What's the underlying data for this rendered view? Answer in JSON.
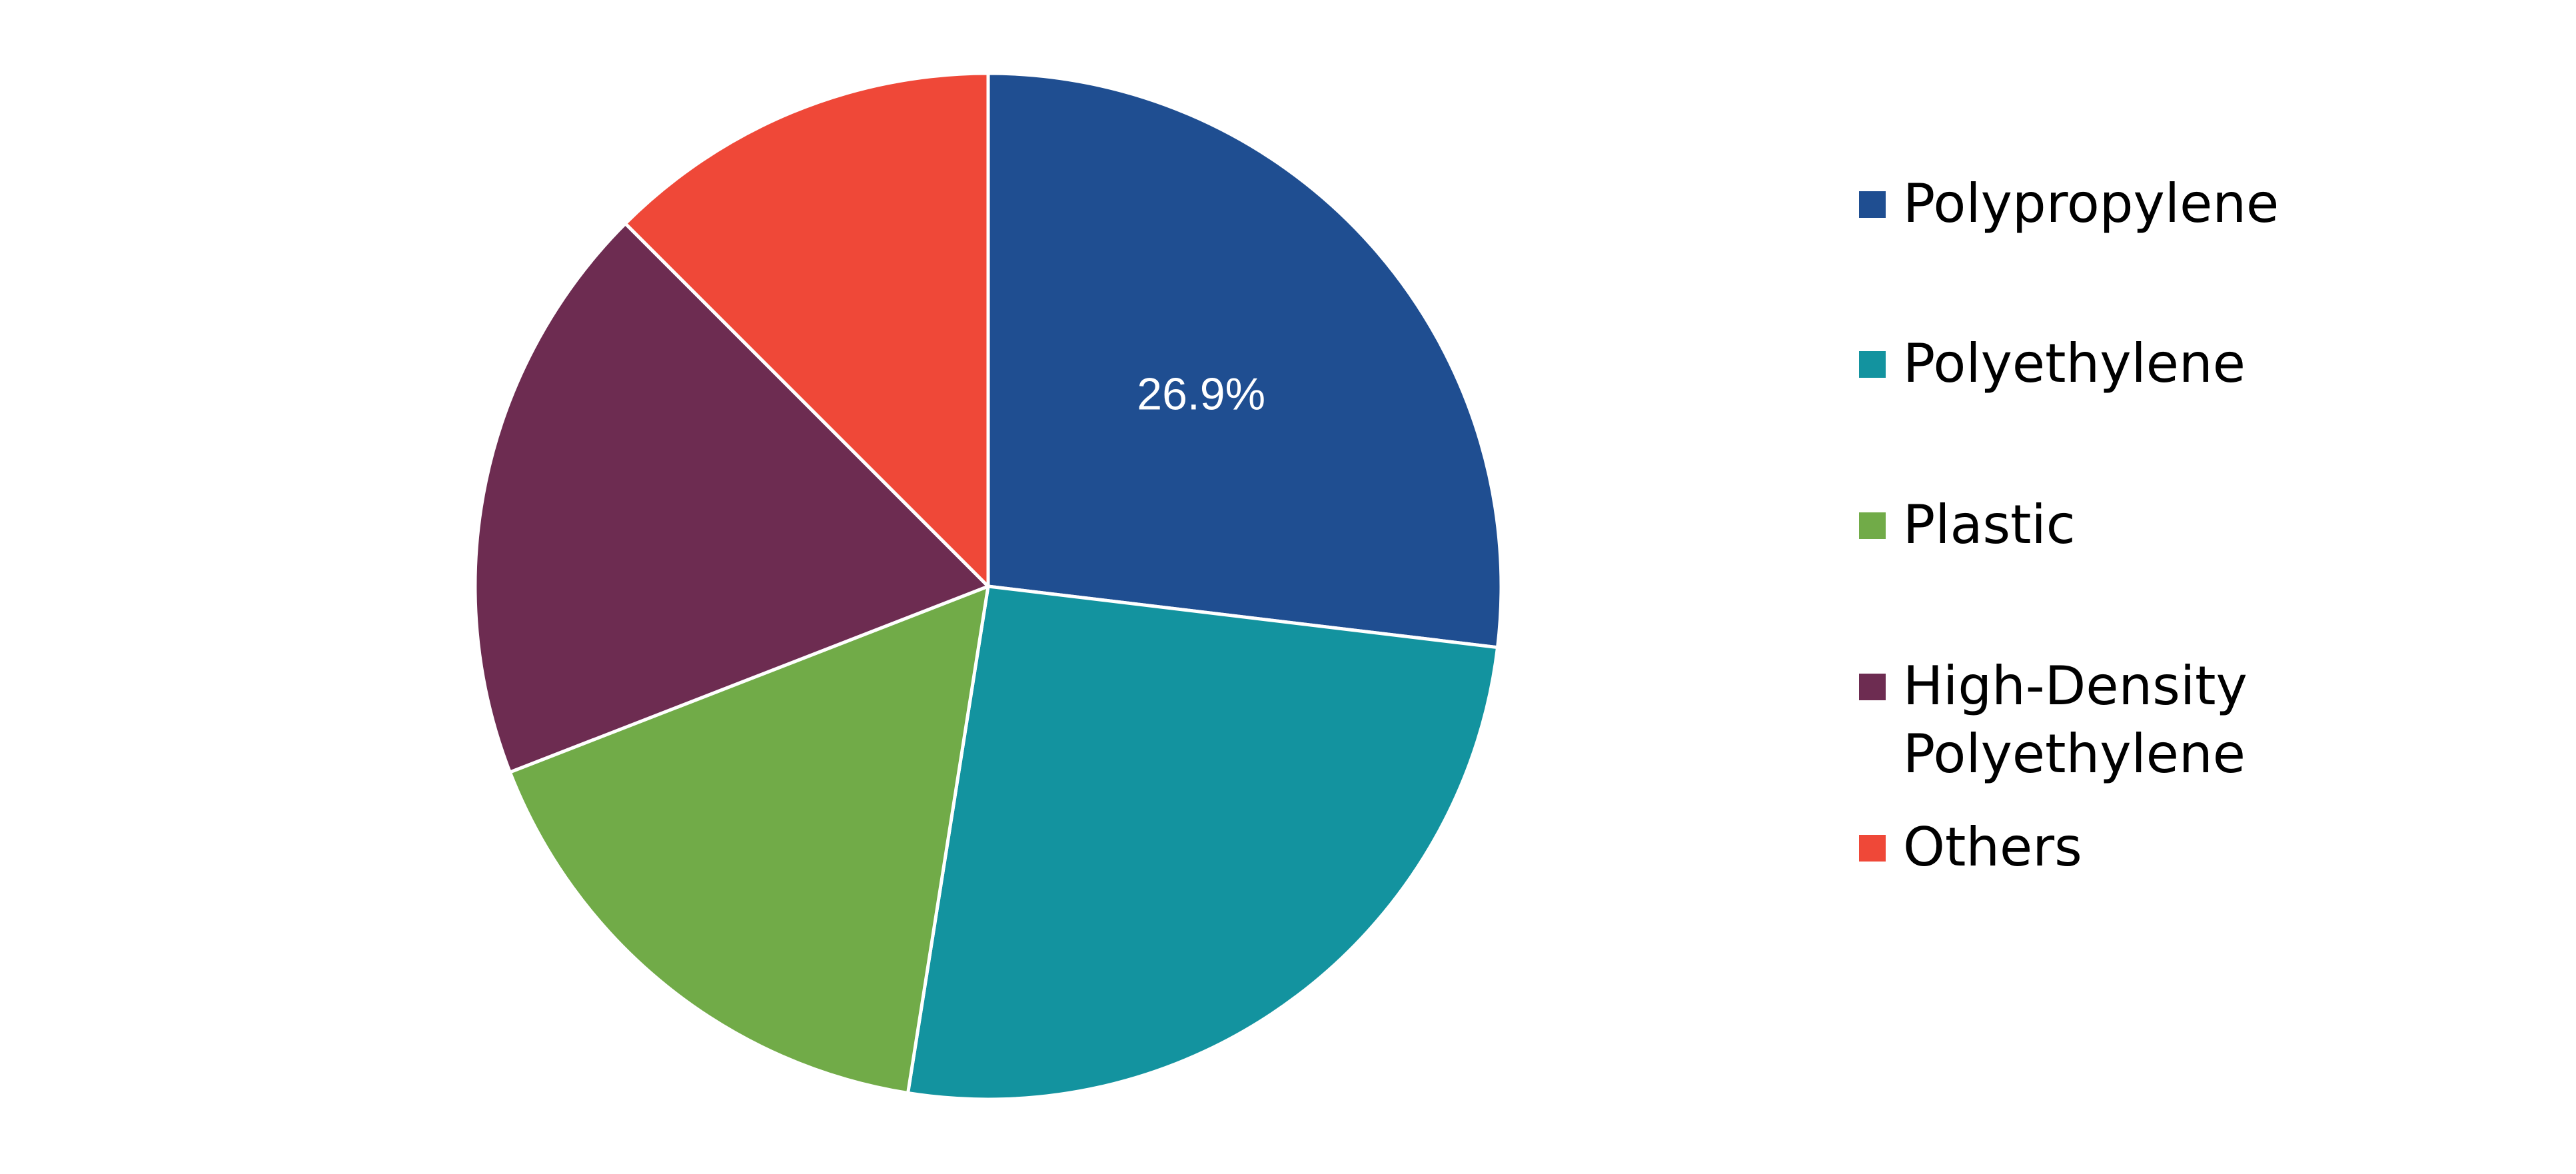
{
  "chart_data": {
    "type": "pie",
    "title": "",
    "legend_position": "right",
    "start_angle_deg": 0,
    "direction": "clockwise",
    "slices": [
      {
        "name": "Polypropylene",
        "value": 26.9,
        "label": "26.9%",
        "color": "#1f4e91"
      },
      {
        "name": "Polyethylene",
        "value": 25.6,
        "label": "",
        "color": "#13939f"
      },
      {
        "name": "Plastic",
        "value": 16.6,
        "label": "",
        "color": "#71ab48"
      },
      {
        "name": "High-Density\nPolyethylene",
        "value": 18.4,
        "label": "",
        "color": "#6d2c51"
      },
      {
        "name": "Others",
        "value": 12.5,
        "label": "",
        "color": "#ef4838"
      }
    ]
  }
}
